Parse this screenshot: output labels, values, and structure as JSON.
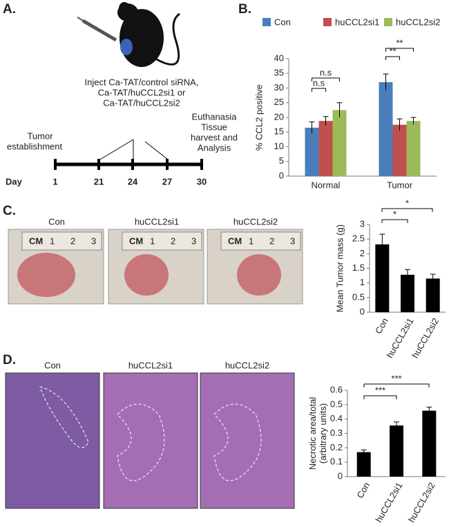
{
  "panel_labels": [
    "A.",
    "B.",
    "C.",
    "D."
  ],
  "panel_a": {
    "injection_text": [
      "Inject  Ca-TAT/control siRNA,",
      "Ca-TAT/huCCL2si1 or",
      "Ca-TAT/huCCL2si2"
    ],
    "start_text": [
      "Tumor",
      "establishment"
    ],
    "end_text": [
      "Euthanasia",
      "Tissue",
      "harvest and",
      "Analysis"
    ],
    "day_label": "Day",
    "days": [
      "1",
      "21",
      "24",
      "27",
      "30"
    ]
  },
  "panel_c_photos": {
    "captions": [
      "Con",
      "huCCL2si1",
      "huCCL2si2"
    ],
    "ruler_labels": [
      "CM",
      "1",
      "2",
      "3"
    ]
  },
  "panel_d_images": {
    "captions": [
      "Con",
      "huCCL2si1",
      "huCCL2si2"
    ]
  },
  "chart_data": [
    {
      "type": "bar",
      "ylabel": "% CCL2 positive",
      "categories": [
        "Normal",
        "Tumor"
      ],
      "series": [
        {
          "name": "Con",
          "color": "#4a7ebb",
          "values": [
            16.5,
            32
          ],
          "errors": [
            2,
            2.8
          ]
        },
        {
          "name": "huCCL2si1",
          "color": "#c0504d",
          "values": [
            18.8,
            17.5
          ],
          "errors": [
            1.5,
            2
          ]
        },
        {
          "name": "huCCL2si2",
          "color": "#9bbb59",
          "values": [
            22.5,
            18.8
          ],
          "errors": [
            2.5,
            1.2
          ]
        }
      ],
      "ylim": [
        0,
        40
      ],
      "yticks": [
        0,
        5,
        10,
        15,
        20,
        25,
        30,
        35,
        40
      ],
      "annotations": [
        "n.s",
        "n.s",
        "**",
        "**"
      ],
      "legend": "top"
    },
    {
      "type": "bar",
      "ylabel": "Mean Tumor mass (g)",
      "categories": [
        "Con",
        "huCCL2si1",
        "huCCL2si2"
      ],
      "values": [
        2.32,
        1.28,
        1.15
      ],
      "errors": [
        0.35,
        0.18,
        0.15
      ],
      "color": "#000000",
      "ylim": [
        0,
        3
      ],
      "yticks": [
        0,
        0.5,
        1,
        1.5,
        2,
        2.5,
        3
      ],
      "annotations": [
        "*",
        "*"
      ]
    },
    {
      "type": "bar",
      "ylabel": [
        "Necrotic area/total",
        "(arbitrary units)"
      ],
      "categories": [
        "Con",
        "huCCL2si1",
        "huCCL2si2"
      ],
      "values": [
        0.17,
        0.355,
        0.458
      ],
      "errors": [
        0.015,
        0.025,
        0.025
      ],
      "color": "#000000",
      "ylim": [
        0,
        0.6
      ],
      "yticks": [
        0,
        0.1,
        0.2,
        0.3,
        0.4,
        0.5,
        0.6
      ],
      "annotations": [
        "***",
        "***"
      ]
    }
  ]
}
